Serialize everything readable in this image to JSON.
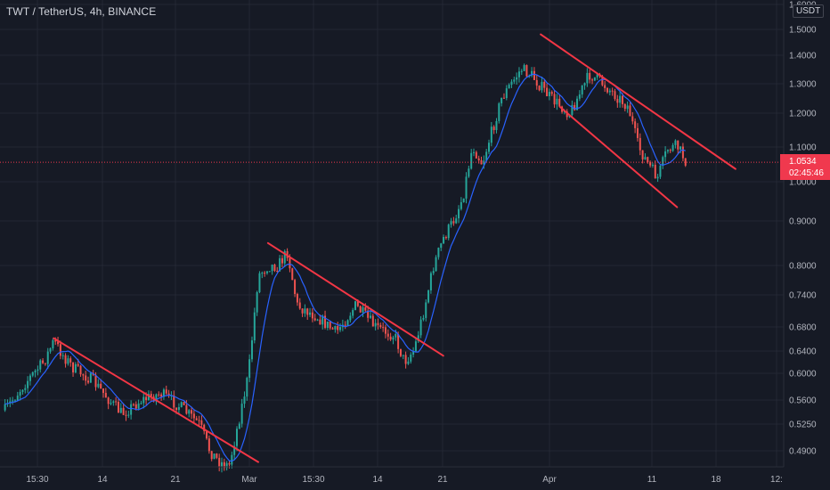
{
  "header": {
    "title": "TWT / TetherUS, 4h, BINANCE"
  },
  "price_scale": {
    "currency": "USDT",
    "last_price": "1.0534",
    "countdown": "02:45:46",
    "last_price_color": "#f0394e"
  },
  "colors": {
    "background": "#161a25",
    "up_candle": "#26a69a",
    "down_candle": "#ef5350",
    "moving_average": "#2962ff",
    "trendline": "#f23645",
    "grid": "#232733"
  },
  "chart_data": {
    "type": "candlestick",
    "symbol": "TWT/USDT",
    "interval": "4h",
    "exchange": "BINANCE",
    "y_scale": "log",
    "grid": true,
    "y_ticks": [
      "1.6000",
      "1.5000",
      "1.4000",
      "1.3000",
      "1.2000",
      "1.1000",
      "1.0000",
      "0.9000",
      "0.8000",
      "0.7400",
      "0.6800",
      "0.6400",
      "0.6000",
      "0.5600",
      "0.5250",
      "0.4900"
    ],
    "x_ticks": [
      "15:30",
      "14",
      "21",
      "Mar",
      "15:30",
      "14",
      "21",
      "Apr",
      "11",
      "18",
      "12:"
    ],
    "series": [
      {
        "type": "close_approx",
        "points": [
          [
            "Feb 04",
            0.545
          ],
          [
            "Feb 06",
            0.585
          ],
          [
            "Feb 08",
            0.62
          ],
          [
            "Feb 09",
            0.655
          ],
          [
            "Feb 10",
            0.63
          ],
          [
            "Feb 11",
            0.61
          ],
          [
            "Feb 13",
            0.59
          ],
          [
            "Feb 15",
            0.555
          ],
          [
            "Feb 16",
            0.54
          ],
          [
            "Feb 18",
            0.56
          ],
          [
            "Feb 20",
            0.57
          ],
          [
            "Feb 22",
            0.55
          ],
          [
            "Feb 24",
            0.525
          ],
          [
            "Feb 25",
            0.49
          ],
          [
            "Feb 26",
            0.475
          ],
          [
            "Feb 27",
            0.47
          ],
          [
            "Feb 28",
            0.53
          ],
          [
            "Mar 01",
            0.6
          ],
          [
            "Mar 02",
            0.78
          ],
          [
            "Mar 03",
            0.8
          ],
          [
            "Mar 04",
            0.8
          ],
          [
            "Mar 05",
            0.83
          ],
          [
            "Mar 06",
            0.72
          ],
          [
            "Mar 08",
            0.7
          ],
          [
            "Mar 10",
            0.67
          ],
          [
            "Mar 12",
            0.72
          ],
          [
            "Mar 14",
            0.68
          ],
          [
            "Mar 16",
            0.665
          ],
          [
            "Mar 17",
            0.62
          ],
          [
            "Mar 18",
            0.64
          ],
          [
            "Mar 19",
            0.71
          ],
          [
            "Mar 20",
            0.8
          ],
          [
            "Mar 21",
            0.86
          ],
          [
            "Mar 22",
            0.9
          ],
          [
            "Mar 23",
            0.96
          ],
          [
            "Mar 24",
            1.1
          ],
          [
            "Mar 25",
            1.05
          ],
          [
            "Mar 27",
            1.25
          ],
          [
            "Mar 29",
            1.35
          ],
          [
            "Mar 30",
            1.33
          ],
          [
            "Apr 01",
            1.25
          ],
          [
            "Apr 03",
            1.2
          ],
          [
            "Apr 05",
            1.33
          ],
          [
            "Apr 06",
            1.31
          ],
          [
            "Apr 08",
            1.25
          ],
          [
            "Apr 09",
            1.22
          ],
          [
            "Apr 10",
            1.1
          ],
          [
            "Apr 11",
            1.05
          ],
          [
            "Apr 12",
            1.01
          ],
          [
            "Apr 13",
            1.09
          ],
          [
            "Apr 14",
            1.1
          ],
          [
            "Apr 15",
            1.0534
          ]
        ]
      }
    ],
    "trendlines": [
      {
        "from": [
          "Feb 09",
          0.66
        ],
        "to": [
          "Mar 02",
          0.475
        ]
      },
      {
        "from": [
          "Mar 03",
          0.85
        ],
        "to": [
          "Mar 21",
          0.63
        ]
      },
      {
        "from": [
          "Mar 31",
          1.48
        ],
        "to": [
          "Apr 20",
          1.035
        ]
      },
      {
        "from": [
          "Apr 02",
          1.22
        ],
        "to": [
          "Apr 14",
          0.935
        ]
      }
    ]
  }
}
